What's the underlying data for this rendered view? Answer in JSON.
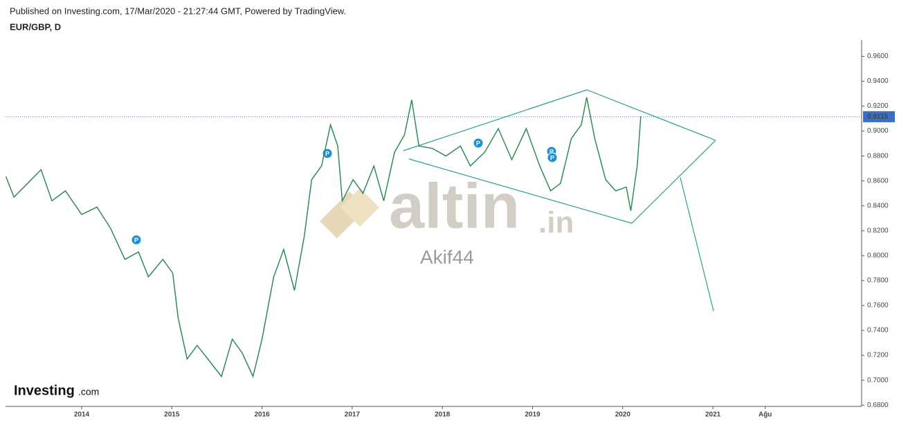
{
  "header": {
    "published": "Published on Investing.com, 17/Mar/2020 - 21:27:44 GMT, Powered by TradingView.",
    "symbol": "EUR/GBP, D"
  },
  "chart_data": {
    "type": "line",
    "color": "#2e8b57",
    "x": [
      2013.16,
      2013.25,
      2013.4,
      2013.55,
      2013.67,
      2013.82,
      2014.0,
      2014.17,
      2014.32,
      2014.48,
      2014.63,
      2014.74,
      2014.9,
      2015.01,
      2015.07,
      2015.17,
      2015.28,
      2015.4,
      2015.55,
      2015.67,
      2015.78,
      2015.9,
      2016.0,
      2016.13,
      2016.24,
      2016.36,
      2016.47,
      2016.55,
      2016.66,
      2016.76,
      2016.84,
      2016.89,
      2017.01,
      2017.12,
      2017.24,
      2017.35,
      2017.47,
      2017.58,
      2017.66,
      2017.74,
      2017.89,
      2018.04,
      2018.2,
      2018.31,
      2018.47,
      2018.62,
      2018.77,
      2018.93,
      2019.08,
      2019.2,
      2019.31,
      2019.43,
      2019.54,
      2019.6,
      2019.69,
      2019.81,
      2019.92,
      2020.04,
      2020.09,
      2020.16,
      2020.2
    ],
    "values": [
      0.8635,
      0.847,
      0.858,
      0.869,
      0.844,
      0.852,
      0.833,
      0.839,
      0.822,
      0.797,
      0.803,
      0.783,
      0.797,
      0.786,
      0.75,
      0.717,
      0.728,
      0.717,
      0.703,
      0.733,
      0.722,
      0.703,
      0.733,
      0.783,
      0.805,
      0.772,
      0.816,
      0.861,
      0.872,
      0.905,
      0.888,
      0.844,
      0.861,
      0.85,
      0.872,
      0.844,
      0.883,
      0.897,
      0.925,
      0.888,
      0.886,
      0.88,
      0.888,
      0.872,
      0.883,
      0.902,
      0.877,
      0.902,
      0.872,
      0.852,
      0.858,
      0.894,
      0.905,
      0.927,
      0.894,
      0.861,
      0.852,
      0.855,
      0.836,
      0.872,
      0.912
    ],
    "xlim": [
      2013.156,
      2022.649
    ],
    "xticks": [
      2014,
      2015,
      2016,
      2017,
      2018,
      2019,
      2020,
      2021,
      {
        "value": 2021.58,
        "label": "Ağu"
      }
    ],
    "ylim": [
      0.679,
      0.973
    ],
    "yticks": [
      {
        "value": 0.68,
        "label": "0.6800"
      },
      {
        "value": 0.7,
        "label": "0.7000"
      },
      {
        "value": 0.72,
        "label": "0.7200"
      },
      {
        "value": 0.74,
        "label": "0.7400"
      },
      {
        "value": 0.76,
        "label": "0.7600"
      },
      {
        "value": 0.78,
        "label": "0.7800"
      },
      {
        "value": 0.8,
        "label": "0.8000"
      },
      {
        "value": 0.82,
        "label": "0.8200"
      },
      {
        "value": 0.84,
        "label": "0.8400"
      },
      {
        "value": 0.86,
        "label": "0.8600"
      },
      {
        "value": 0.88,
        "label": "0.8800"
      },
      {
        "value": 0.9,
        "label": "0.9000"
      },
      {
        "value": 0.92,
        "label": "0.9200"
      },
      {
        "value": 0.94,
        "label": "0.9400"
      },
      {
        "value": 0.96,
        "label": "0.9600"
      }
    ],
    "last_price": 0.9115,
    "last_price_color": "#3b6fc6",
    "event_label": "P"
  },
  "watermark": {
    "brand": "altin",
    "tld": ".in",
    "author": "Akif44"
  },
  "logo": {
    "name": "Investing",
    "suffix": ".com"
  }
}
